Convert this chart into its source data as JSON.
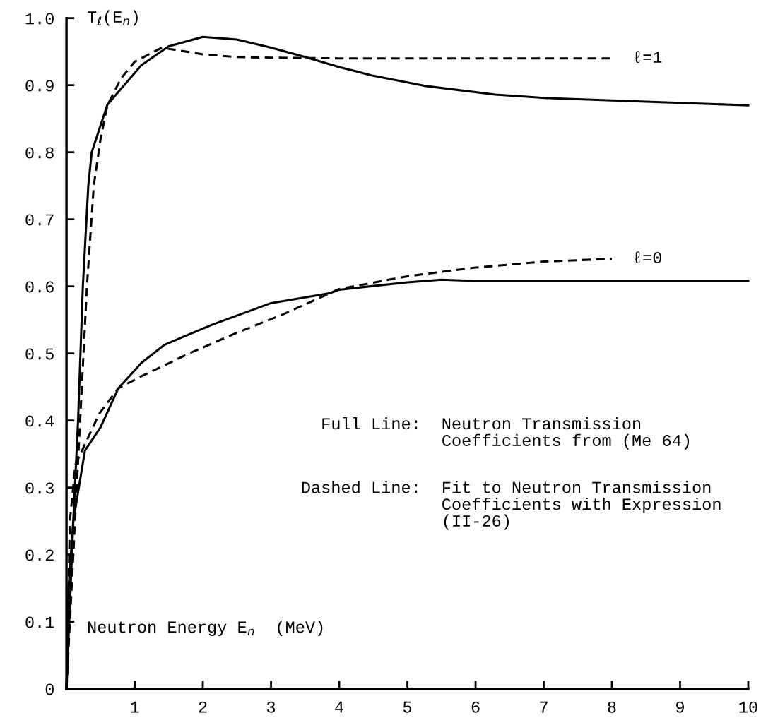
{
  "chart_data": {
    "type": "line",
    "ylabel": "T$_{ℓ}$(E$_{n}$)",
    "xlabel": "Neutron Energy E$_{n}$  (MeV)",
    "xlim": [
      0,
      10
    ],
    "ylim": [
      0,
      1.0
    ],
    "xticks": [
      1,
      2,
      3,
      4,
      5,
      6,
      7,
      8,
      9,
      10
    ],
    "yticks": [
      0,
      0.1,
      0.2,
      0.3,
      0.4,
      0.5,
      0.6,
      0.7,
      0.8,
      0.9,
      {
        "value": 1.0,
        "label": "1.0"
      }
    ],
    "grid": false,
    "legend": false,
    "marker": "none",
    "series": [
      {
        "color": "#000000",
        "line_style": "solid",
        "x": [
          0,
          0.1,
          0.17,
          0.24,
          0.32,
          0.37,
          0.6,
          1.1,
          1.5,
          2.0,
          2.5,
          3.0,
          3.5,
          4.0,
          4.5,
          5.0,
          5.25,
          6.29,
          7.0,
          8.36,
          10.0
        ],
        "values": [
          0,
          0.25,
          0.4,
          0.6,
          0.75,
          0.8,
          0.871,
          0.93,
          0.958,
          0.972,
          0.968,
          0.956,
          0.942,
          0.927,
          0.914,
          0.904,
          0.899,
          0.886,
          0.881,
          0.876,
          0.87
        ]
      },
      {
        "name": "ℓ=1",
        "color": "#000000",
        "line_style": "dashed",
        "x": [
          0,
          0.1,
          0.2,
          0.3,
          0.4,
          0.5,
          0.6,
          0.8,
          1.0,
          1.4,
          2.0,
          2.5,
          3.0,
          4.0,
          5.0,
          6.0,
          7.0,
          8.0
        ],
        "values": [
          0,
          0.2,
          0.4,
          0.6,
          0.75,
          0.82,
          0.87,
          0.91,
          0.935,
          0.956,
          0.946,
          0.942,
          0.941,
          0.94,
          0.94,
          0.94,
          0.94,
          0.94
        ]
      },
      {
        "color": "#000000",
        "line_style": "solid",
        "x": [
          0,
          0.03,
          0.1,
          0.27,
          0.5,
          0.76,
          1.1,
          1.44,
          2.14,
          3.0,
          3.87,
          4.0,
          5.0,
          5.5,
          6.0,
          8.0,
          10.0
        ],
        "values": [
          0,
          0.15,
          0.25,
          0.355,
          0.39,
          0.448,
          0.486,
          0.513,
          0.543,
          0.575,
          0.59,
          0.595,
          0.606,
          0.61,
          0.608,
          0.608,
          0.608
        ]
      },
      {
        "name": "ℓ=0",
        "color": "#000000",
        "line_style": "dashed",
        "x": [
          0,
          0.05,
          0.13,
          0.48,
          0.76,
          1.1,
          1.8,
          2.48,
          3.17,
          3.87,
          4.0,
          5.0,
          6.0,
          7.0,
          8.0
        ],
        "values": [
          0,
          0.25,
          0.334,
          0.41,
          0.448,
          0.466,
          0.5,
          0.53,
          0.558,
          0.59,
          0.596,
          0.615,
          0.628,
          0.637,
          0.641
        ]
      }
    ],
    "annotations": [
      "Full Line:",
      "Neutron Transmission\nCoefficients from (Me 64)",
      "Dashed Line:",
      "Fit to Neutron Transmission\nCoefficients with Expression\n(II-26)"
    ]
  }
}
